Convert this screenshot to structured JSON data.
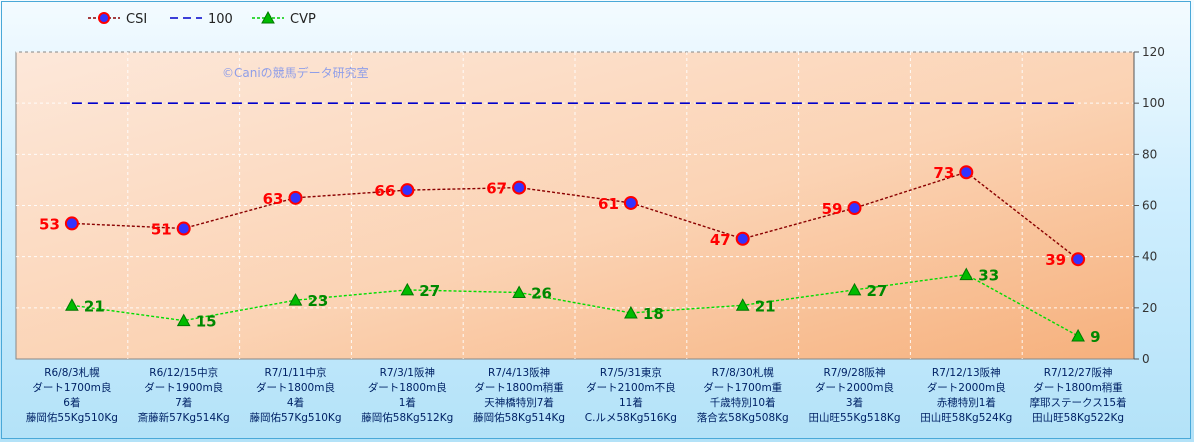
{
  "chart_data": {
    "type": "line",
    "watermark": "©Caniの競馬データ研究室",
    "legend": [
      {
        "name": "CSI",
        "color": "#8b0000",
        "marker": "circle",
        "dash": "dotted"
      },
      {
        "name": "100",
        "color": "#0000cc",
        "marker": "none",
        "dash": "dashed"
      },
      {
        "name": "CVP",
        "color": "#00cc00",
        "marker": "triangle",
        "dash": "dotted"
      }
    ],
    "legend_position": "top-left",
    "ylim": [
      0,
      120
    ],
    "yticks": [
      0,
      20,
      40,
      60,
      80,
      100,
      120
    ],
    "y_axis_side": "right",
    "grid": true,
    "categories": [
      [
        "R6/8/3札幌",
        "ダート1700m良",
        "6着",
        "藤岡佑55Kg510Kg"
      ],
      [
        "R6/12/15中京",
        "ダート1900m良",
        "7着",
        "斎藤新57Kg514Kg"
      ],
      [
        "R7/1/11中京",
        "ダート1800m良",
        "4着",
        "藤岡佑57Kg510Kg"
      ],
      [
        "R7/3/1阪神",
        "ダート1800m良",
        "1着",
        "藤岡佑58Kg512Kg"
      ],
      [
        "R7/4/13阪神",
        "ダート1800m稍重",
        "天神橋特別7着",
        "藤岡佑58Kg514Kg"
      ],
      [
        "R7/5/31東京",
        "ダート2100m不良",
        "11着",
        "C.ルメ58Kg516Kg"
      ],
      [
        "R7/8/30札幌",
        "ダート1700m重",
        "千歳特別10着",
        "落合玄58Kg508Kg"
      ],
      [
        "R7/9/28阪神",
        "ダート2000m良",
        "3着",
        "田山旺55Kg518Kg"
      ],
      [
        "R7/12/13阪神",
        "ダート2000m良",
        "赤穂特別1着",
        "田山旺58Kg524Kg"
      ],
      [
        "R7/12/27阪神",
        "ダート1800m稍重",
        "摩耶ステークス15着",
        "田山旺58Kg522Kg"
      ]
    ],
    "series": [
      {
        "name": "CSI",
        "values": [
          53,
          51,
          63,
          66,
          67,
          61,
          47,
          59,
          73,
          39
        ],
        "color": "#8b0000",
        "marker_fill": "#3333ff",
        "marker_edge": "#ff0000",
        "label_color": "#ff0000"
      },
      {
        "name": "100",
        "values": [
          100,
          100,
          100,
          100,
          100,
          100,
          100,
          100,
          100,
          100
        ],
        "color": "#0000cc"
      },
      {
        "name": "CVP",
        "values": [
          21,
          15,
          23,
          27,
          26,
          18,
          21,
          27,
          33,
          9
        ],
        "color": "#00dd00",
        "marker_fill": "#00bb00",
        "label_color": "#008800"
      }
    ]
  }
}
